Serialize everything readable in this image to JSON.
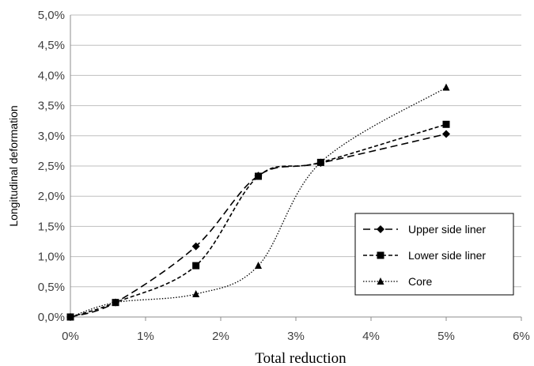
{
  "chart_data": {
    "type": "line",
    "xlabel": "Total reduction",
    "ylabel": "Longitudinal deformation",
    "xlim": [
      0,
      6
    ],
    "ylim": [
      0,
      5
    ],
    "x_ticks": [
      "0%",
      "1%",
      "2%",
      "3%",
      "4%",
      "5%",
      "6%"
    ],
    "y_ticks": [
      "0,0%",
      "0,5%",
      "1,0%",
      "1,5%",
      "2,0%",
      "2,5%",
      "3,0%",
      "3,5%",
      "4,0%",
      "4,5%",
      "5,0%"
    ],
    "grid": "horizontal",
    "legend_position": "bottom-right",
    "series": [
      {
        "name": "Upper side liner",
        "marker": "diamond",
        "line_style": "dashed",
        "x": [
          0,
          0.6,
          1.67,
          2.5,
          3.33,
          5.0
        ],
        "y": [
          0.0,
          0.24,
          1.17,
          2.34,
          2.55,
          3.03
        ]
      },
      {
        "name": "Lower side liner",
        "marker": "square",
        "line_style": "short-dashed",
        "x": [
          0,
          0.6,
          1.67,
          2.5,
          3.33,
          5.0
        ],
        "y": [
          0.0,
          0.24,
          0.85,
          2.33,
          2.56,
          3.19
        ]
      },
      {
        "name": "Core",
        "marker": "triangle",
        "line_style": "dotted",
        "x": [
          0,
          0.6,
          1.67,
          2.5,
          3.33,
          5.0
        ],
        "y": [
          0.0,
          0.24,
          0.38,
          0.85,
          2.56,
          3.8
        ]
      }
    ]
  }
}
